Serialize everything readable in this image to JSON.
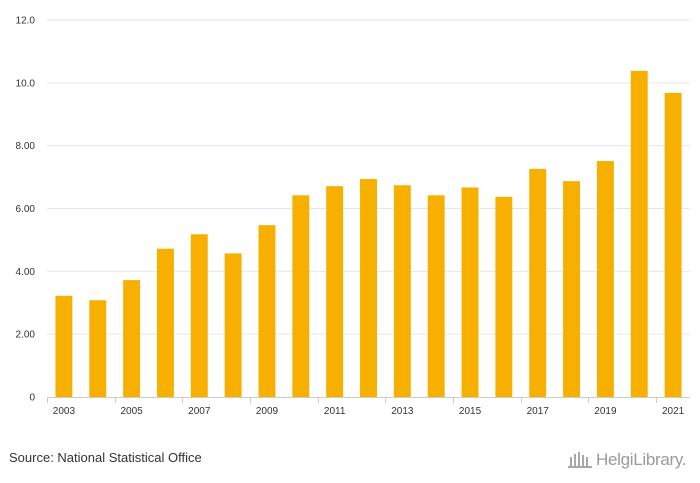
{
  "chart_data": {
    "type": "bar",
    "title": "",
    "xlabel": "",
    "ylabel": "",
    "ylim": [
      0,
      12
    ],
    "y_ticks": [
      "0",
      "2.00",
      "4.00",
      "6.00",
      "8.00",
      "10.0",
      "12.0"
    ],
    "categories": [
      "2003",
      "2004",
      "2005",
      "2006",
      "2007",
      "2008",
      "2009",
      "2010",
      "2011",
      "2012",
      "2013",
      "2014",
      "2015",
      "2016",
      "2017",
      "2018",
      "2019",
      "2020",
      "2021"
    ],
    "x_tick_labels": [
      "2003",
      "2005",
      "2007",
      "2009",
      "2011",
      "2013",
      "2015",
      "2017",
      "2019",
      "2021"
    ],
    "values": [
      3.22,
      3.08,
      3.72,
      4.72,
      5.18,
      4.57,
      5.47,
      6.42,
      6.71,
      6.94,
      6.74,
      6.42,
      6.67,
      6.37,
      7.26,
      6.87,
      7.51,
      10.38,
      9.68
    ],
    "grid": true,
    "bar_color": "#F7AF00"
  },
  "footer": {
    "source": "Source: National Statistical Office",
    "logo_text": "HelgiLibrary."
  }
}
